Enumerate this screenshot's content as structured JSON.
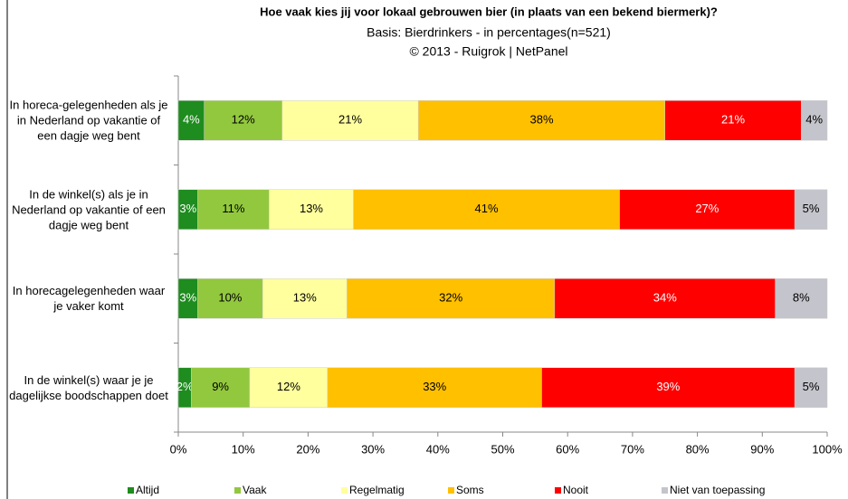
{
  "chart_data": {
    "type": "stacked_barh",
    "title": "Hoe vaak kies jij voor lokaal gebrouwen bier (in plaats van een bekend biermerk)?",
    "subtitle": "Basis: Bierdrinkers - in percentages(n=521)",
    "source": "© 2013 - Ruigrok | NetPanel",
    "categories": [
      "In horeca-gelegenheden als je in Nederland op vakantie of een dagje weg bent",
      "In de winkel(s) als je in Nederland op vakantie of een dagje weg bent",
      "In horecagelegenheden waar je vaker komt",
      "In de winkel(s) waar je je dagelijkse boodschappen doet"
    ],
    "series": [
      {
        "name": "Altijd",
        "color": "#1e8c1e",
        "label_color": "#ffffff",
        "values": [
          4,
          3,
          3,
          2
        ],
        "value_labels": [
          "4%",
          "3%",
          "3%",
          "2%"
        ]
      },
      {
        "name": "Vaak",
        "color": "#92c83e",
        "label_color": "#000000",
        "values": [
          12,
          11,
          10,
          9
        ],
        "value_labels": [
          "12%",
          "11%",
          "10%",
          "9%"
        ]
      },
      {
        "name": "Regelmatig",
        "color": "#ffff9e",
        "label_color": "#000000",
        "values": [
          21,
          13,
          13,
          12
        ],
        "value_labels": [
          "21%",
          "13%",
          "13%",
          "12%"
        ]
      },
      {
        "name": "Soms",
        "color": "#ffc000",
        "label_color": "#000000",
        "values": [
          38,
          41,
          32,
          33
        ],
        "value_labels": [
          "38%",
          "41%",
          "32%",
          "33%"
        ]
      },
      {
        "name": "Nooit",
        "color": "#ff0000",
        "label_color": "#ffffff",
        "values": [
          21,
          27,
          34,
          39
        ],
        "value_labels": [
          "21%",
          "27%",
          "34%",
          "39%"
        ]
      },
      {
        "name": "Niet van toepassing",
        "color": "#c4c4cc",
        "label_color": "#000000",
        "values": [
          4,
          5,
          8,
          5
        ],
        "value_labels": [
          "4%",
          "5%",
          "8%",
          "5%"
        ]
      }
    ],
    "xlim": [
      0,
      100
    ],
    "xticks": [
      {
        "value": 0,
        "label": "0%"
      },
      {
        "value": 10,
        "label": "10%"
      },
      {
        "value": 20,
        "label": "20%"
      },
      {
        "value": 30,
        "label": "30%"
      },
      {
        "value": 40,
        "label": "40%"
      },
      {
        "value": 50,
        "label": "50%"
      },
      {
        "value": 60,
        "label": "60%"
      },
      {
        "value": 70,
        "label": "70%"
      },
      {
        "value": 80,
        "label": "80%"
      },
      {
        "value": 90,
        "label": "90%"
      },
      {
        "value": 100,
        "label": "100%"
      }
    ],
    "legend": "bottom"
  }
}
